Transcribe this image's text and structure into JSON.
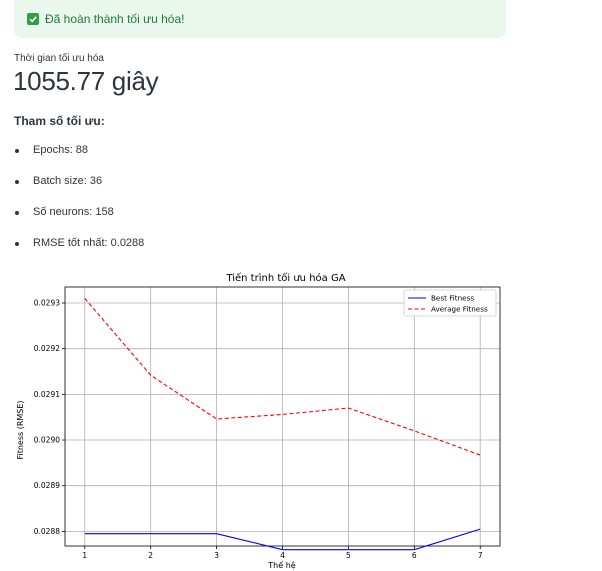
{
  "alert": {
    "icon": "check-square-icon",
    "text": "Đã hoàn thành tối ưu hóa!",
    "color": "#2ea043"
  },
  "metric": {
    "label": "Thời gian tối ưu hóa",
    "value": "1055.77 giây"
  },
  "params": {
    "title": "Tham số tối ưu:",
    "items": [
      "Epochs: 88",
      "Batch size: 36",
      "Số neurons: 158",
      "RMSE tốt nhất: 0.0288"
    ]
  },
  "chart_data": {
    "type": "line",
    "title": "Tiến trình tối ưu hóa GA",
    "xlabel": "Thế hệ",
    "ylabel": "Fitness (RMSE)",
    "x": [
      1,
      2,
      3,
      4,
      5,
      6,
      7
    ],
    "xticks": [
      "1",
      "2",
      "3",
      "4",
      "5",
      "6",
      "7"
    ],
    "yticks": [
      "0.0288",
      "0.0289",
      "0.0290",
      "0.0291",
      "0.0292",
      "0.0293"
    ],
    "ylim": [
      0.028768,
      0.029335
    ],
    "xlim": [
      0.7,
      7.3
    ],
    "grid": true,
    "legend_position": "top-right",
    "series": [
      {
        "name": "Best Fitness",
        "values": [
          0.028795,
          0.028795,
          0.028795,
          0.02876,
          0.02876,
          0.02876,
          0.028805
        ],
        "color": "#0000ff",
        "dash": "solid"
      },
      {
        "name": "Average Fitness",
        "values": [
          0.02931,
          0.029142,
          0.029046,
          0.029056,
          0.02907,
          0.02902,
          0.028967
        ],
        "color": "#ff0000",
        "dash": "dashed"
      }
    ]
  }
}
